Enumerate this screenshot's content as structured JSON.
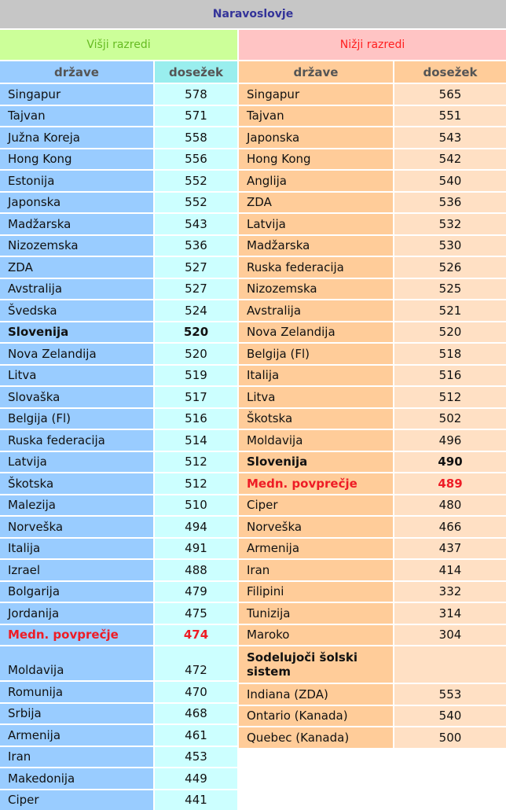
{
  "title": "Naravoslovje",
  "left": {
    "heading": "Višji razredi",
    "col_country": "države",
    "col_score": "dosežek",
    "rows": [
      {
        "country": "Singapur",
        "score": "578"
      },
      {
        "country": "Tajvan",
        "score": "571"
      },
      {
        "country": "Južna Koreja",
        "score": "558"
      },
      {
        "country": "Hong Kong",
        "score": "556"
      },
      {
        "country": "Estonija",
        "score": "552"
      },
      {
        "country": "Japonska",
        "score": "552"
      },
      {
        "country": "Madžarska",
        "score": "543"
      },
      {
        "country": "Nizozemska",
        "score": "536"
      },
      {
        "country": "ZDA",
        "score": "527"
      },
      {
        "country": "Avstralija",
        "score": "527"
      },
      {
        "country": "Švedska",
        "score": "524"
      },
      {
        "country": "Slovenija",
        "score": "520",
        "style": "bold"
      },
      {
        "country": "Nova Zelandija",
        "score": "520"
      },
      {
        "country": "Litva",
        "score": "519"
      },
      {
        "country": "Slovaška",
        "score": "517"
      },
      {
        "country": "Belgija (Fl)",
        "score": "516"
      },
      {
        "country": "Ruska federacija",
        "score": "514"
      },
      {
        "country": "Latvija",
        "score": "512"
      },
      {
        "country": "Škotska",
        "score": "512"
      },
      {
        "country": "Malezija",
        "score": "510"
      },
      {
        "country": "Norveška",
        "score": "494"
      },
      {
        "country": "Italija",
        "score": "491"
      },
      {
        "country": "Izrael",
        "score": "488"
      },
      {
        "country": "Bolgarija",
        "score": "479"
      },
      {
        "country": "Jordanija",
        "score": "475"
      },
      {
        "country": "Medn. povprečje",
        "score": "474",
        "style": "red"
      },
      {
        "country": "Moldavija",
        "score": "472",
        "style": "tall"
      },
      {
        "country": "Romunija",
        "score": "470"
      },
      {
        "country": "Srbija",
        "score": "468"
      },
      {
        "country": "Armenija",
        "score": "461"
      },
      {
        "country": "Iran",
        "score": "453"
      },
      {
        "country": "Makedonija",
        "score": "449"
      },
      {
        "country": "Ciper",
        "score": "441"
      }
    ]
  },
  "right": {
    "heading": "Nižji razredi",
    "col_country": "države",
    "col_score": "dosežek",
    "rows": [
      {
        "country": "Singapur",
        "score": "565"
      },
      {
        "country": "Tajvan",
        "score": "551"
      },
      {
        "country": "Japonska",
        "score": "543"
      },
      {
        "country": "Hong Kong",
        "score": "542"
      },
      {
        "country": "Anglija",
        "score": "540"
      },
      {
        "country": "ZDA",
        "score": "536"
      },
      {
        "country": "Latvija",
        "score": "532"
      },
      {
        "country": "Madžarska",
        "score": "530"
      },
      {
        "country": "Ruska federacija",
        "score": "526"
      },
      {
        "country": "Nizozemska",
        "score": "525"
      },
      {
        "country": "Avstralija",
        "score": "521"
      },
      {
        "country": "Nova Zelandija",
        "score": "520"
      },
      {
        "country": "Belgija (Fl)",
        "score": "518"
      },
      {
        "country": "Italija",
        "score": "516"
      },
      {
        "country": "Litva",
        "score": "512"
      },
      {
        "country": "Škotska",
        "score": "502"
      },
      {
        "country": "Moldavija",
        "score": "496"
      },
      {
        "country": "Slovenija",
        "score": "490",
        "style": "bold"
      },
      {
        "country": "Medn. povprečje",
        "score": "489",
        "style": "red"
      },
      {
        "country": "Ciper",
        "score": "480"
      },
      {
        "country": "Norveška",
        "score": "466"
      },
      {
        "country": "Armenija",
        "score": "437"
      },
      {
        "country": "Iran",
        "score": "414"
      },
      {
        "country": "Filipini",
        "score": "332"
      },
      {
        "country": "Tunizija",
        "score": "314"
      },
      {
        "country": "Maroko",
        "score": "304"
      },
      {
        "country": "Sodelujoči šolski sistem",
        "score": "",
        "style": "sub"
      },
      {
        "country": "Indiana (ZDA)",
        "score": "553"
      },
      {
        "country": "Ontario (Kanada)",
        "score": "540"
      },
      {
        "country": "Quebec (Kanada)",
        "score": "500"
      }
    ]
  }
}
